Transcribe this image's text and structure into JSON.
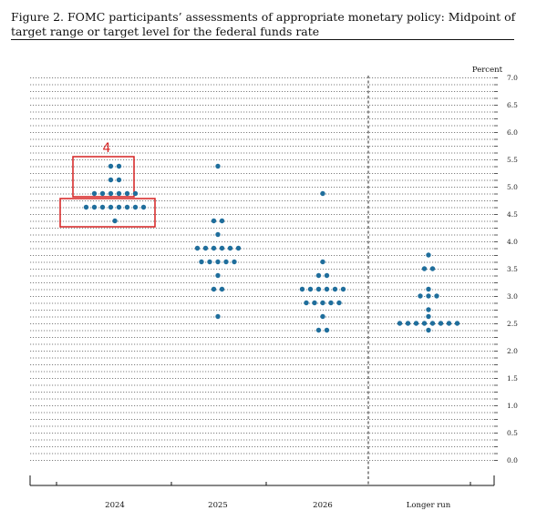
{
  "figure": {
    "title": "Figure 2.  FOMC participants’ assessments of appropriate monetary policy:  Midpoint of target range or target level for the federal funds rate"
  },
  "colors": {
    "dot": "#1f6e9c",
    "highlight": "#d62020",
    "axis": "#111111",
    "grid": "#555555"
  },
  "annotation": {
    "label": "4"
  },
  "chart_data": {
    "type": "scatter",
    "subtype": "dot plot",
    "title": "",
    "xlabel": "",
    "ylabel": "",
    "unit_label": "Percent",
    "categories": [
      "2024",
      "2025",
      "2026",
      "Longer run"
    ],
    "y_range": [
      0,
      7.0
    ],
    "y_ticks": [
      "0.0",
      "0.5",
      "1.0",
      "1.5",
      "2.0",
      "2.5",
      "3.0",
      "3.5",
      "4.0",
      "4.5",
      "5.0",
      "5.5",
      "6.0",
      "6.5",
      "7.0"
    ],
    "gridlines": "dotted horizontal every 0.125",
    "separator": "dashed vertical line before Longer run",
    "y_axis_side": "right",
    "series": [
      {
        "category": "2024",
        "dots": [
          {
            "y": 5.375,
            "count": 2
          },
          {
            "y": 5.125,
            "count": 2
          },
          {
            "y": 4.875,
            "count": 6
          },
          {
            "y": 4.625,
            "count": 8
          },
          {
            "y": 4.375,
            "count": 1
          }
        ]
      },
      {
        "category": "2025",
        "dots": [
          {
            "y": 5.375,
            "count": 1
          },
          {
            "y": 4.375,
            "count": 2
          },
          {
            "y": 4.125,
            "count": 1
          },
          {
            "y": 3.875,
            "count": 6
          },
          {
            "y": 3.625,
            "count": 5
          },
          {
            "y": 3.375,
            "count": 1
          },
          {
            "y": 3.125,
            "count": 2
          },
          {
            "y": 2.625,
            "count": 1
          }
        ]
      },
      {
        "category": "2026",
        "dots": [
          {
            "y": 4.875,
            "count": 1
          },
          {
            "y": 3.625,
            "count": 1
          },
          {
            "y": 3.375,
            "count": 2
          },
          {
            "y": 3.125,
            "count": 6
          },
          {
            "y": 2.875,
            "count": 5
          },
          {
            "y": 2.625,
            "count": 1
          },
          {
            "y": 2.375,
            "count": 2
          }
        ]
      },
      {
        "category": "Longer run",
        "dots": [
          {
            "y": 3.75,
            "count": 1
          },
          {
            "y": 3.5,
            "count": 2
          },
          {
            "y": 3.125,
            "count": 1
          },
          {
            "y": 3.0,
            "count": 3
          },
          {
            "y": 2.75,
            "count": 1
          },
          {
            "y": 2.625,
            "count": 1
          },
          {
            "y": 2.5,
            "count": 8
          },
          {
            "y": 2.375,
            "count": 1
          }
        ]
      }
    ],
    "highlights": [
      {
        "category": "2024",
        "y_range": [
          4.75,
          5.5
        ]
      },
      {
        "category": "2024",
        "y_range": [
          4.5,
          4.75
        ]
      }
    ]
  }
}
